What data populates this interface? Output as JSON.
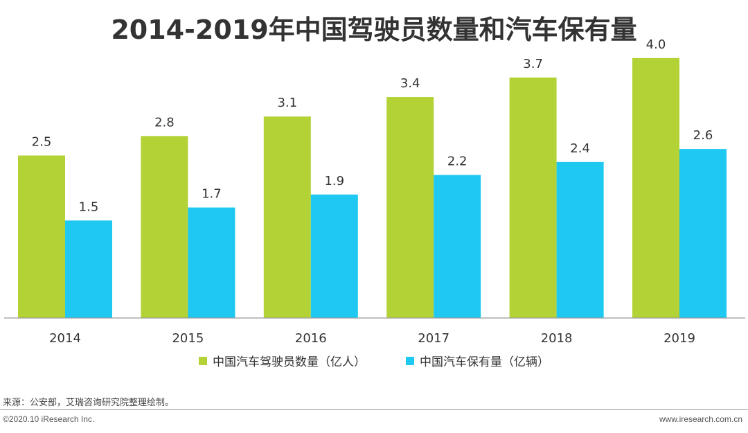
{
  "chart_data": {
    "type": "bar",
    "title": "2014-2019年中国驾驶员数量和汽车保有量",
    "categories": [
      "2014",
      "2015",
      "2016",
      "2017",
      "2018",
      "2019"
    ],
    "series": [
      {
        "name": "中国汽车驾驶员数量（亿人）",
        "color": "#b2d235",
        "values": [
          2.5,
          2.8,
          3.1,
          3.4,
          3.7,
          4.0
        ],
        "labels": [
          "2.5",
          "2.8",
          "3.1",
          "3.4",
          "3.7",
          "4.0"
        ]
      },
      {
        "name": "中国汽车保有量（亿辆）",
        "color": "#1ec8f0",
        "values": [
          1.5,
          1.7,
          1.9,
          2.2,
          2.4,
          2.6
        ],
        "labels": [
          "1.5",
          "1.7",
          "1.9",
          "2.2",
          "2.4",
          "2.6"
        ]
      }
    ],
    "ylim": [
      0,
      4.2
    ],
    "xlabel": "",
    "ylabel": "",
    "grid": false,
    "legend_position": "bottom"
  },
  "footer": {
    "source": "来源：公安部，艾瑞咨询研究院整理绘制。",
    "copyright": "©2020.10 iResearch Inc.",
    "website": "www.iresearch.com.cn"
  }
}
